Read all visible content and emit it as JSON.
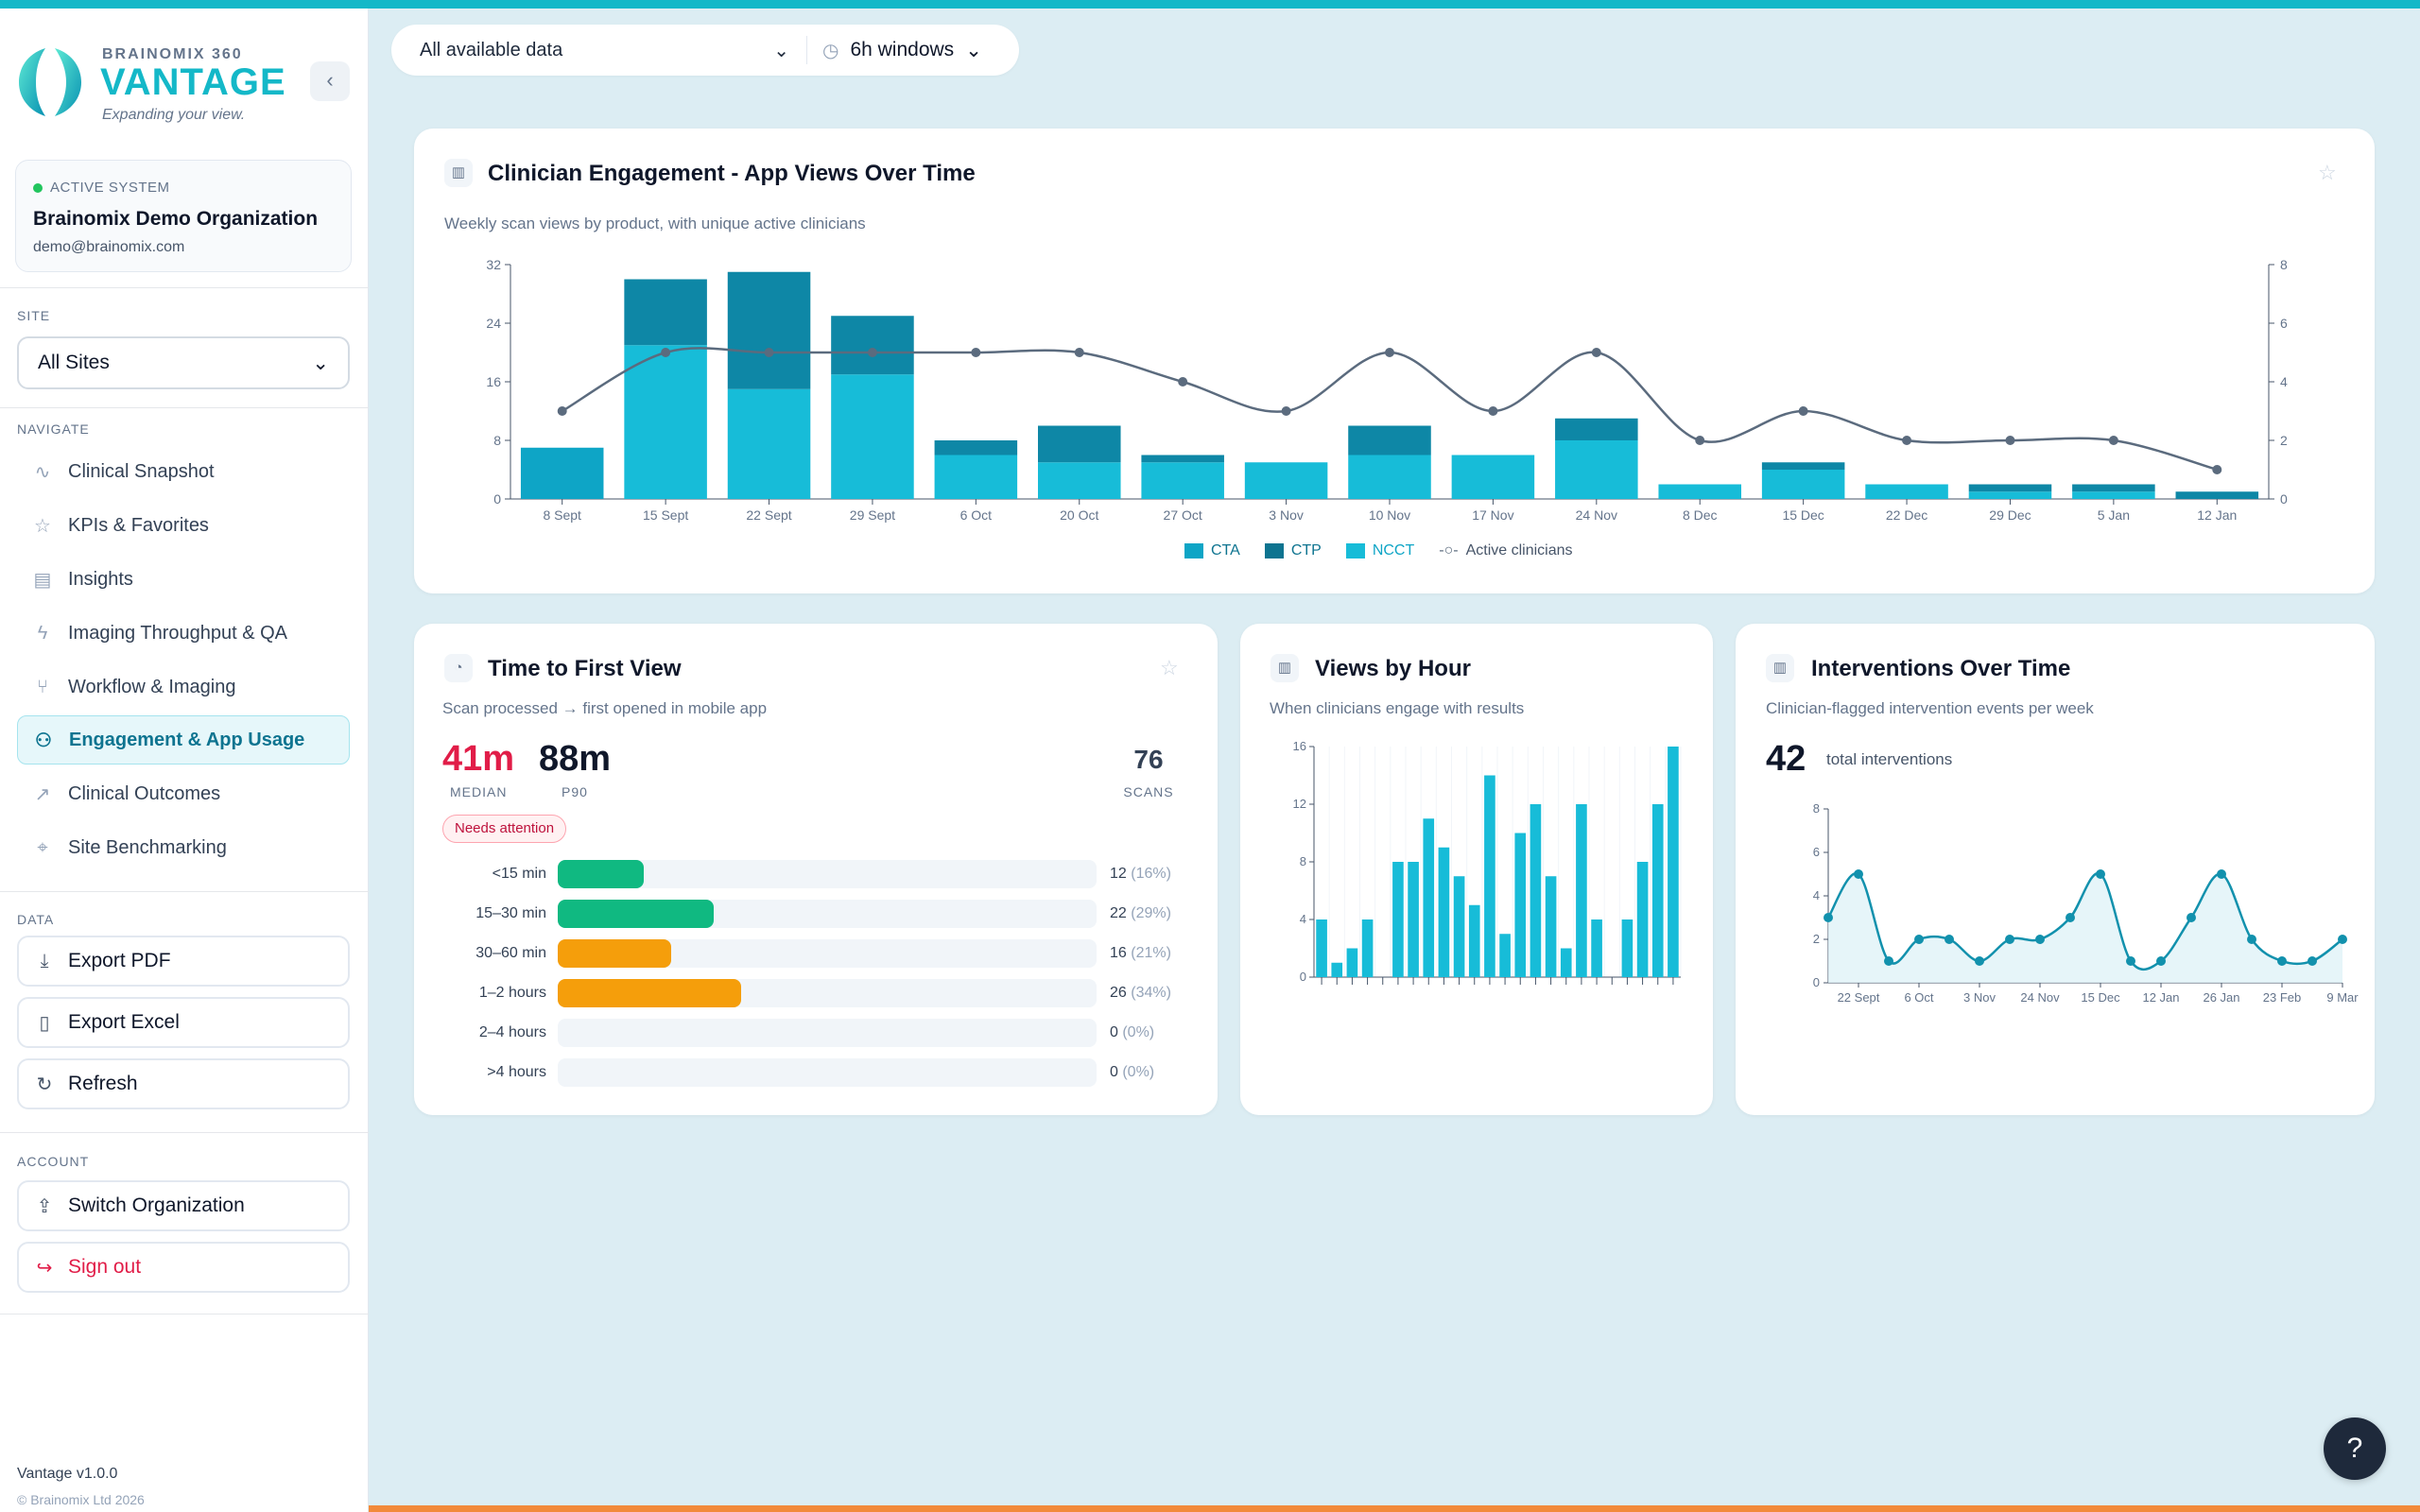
{
  "brand": {
    "small": "BRAINOMIX 360",
    "big": "VANTAGE",
    "tagline": "Expanding your view."
  },
  "system": {
    "status": "ACTIVE SYSTEM",
    "org": "Brainomix Demo Organization",
    "email": "demo@brainomix.com"
  },
  "site": {
    "label": "SITE",
    "value": "All Sites"
  },
  "nav": {
    "label": "NAVIGATE",
    "items": [
      {
        "label": "Clinical Snapshot",
        "icon": "activity-icon"
      },
      {
        "label": "KPIs & Favorites",
        "icon": "star-icon"
      },
      {
        "label": "Insights",
        "icon": "clipboard-icon"
      },
      {
        "label": "Imaging Throughput & QA",
        "icon": "lightning-icon"
      },
      {
        "label": "Workflow & Imaging",
        "icon": "workflow-icon"
      },
      {
        "label": "Engagement & App Usage",
        "icon": "users-icon",
        "active": true
      },
      {
        "label": "Clinical Outcomes",
        "icon": "trend-icon"
      },
      {
        "label": "Site Benchmarking",
        "icon": "pin-icon"
      }
    ]
  },
  "data_section": {
    "label": "DATA",
    "export_pdf": "Export PDF",
    "export_excel": "Export Excel",
    "refresh": "Refresh"
  },
  "account": {
    "label": "ACCOUNT",
    "switch_org": "Switch Organization",
    "sign_out": "Sign out"
  },
  "footer": {
    "version": "Vantage v1.0.0",
    "copyright": "© Brainomix Ltd 2026"
  },
  "filters": {
    "data_scope": "All available data",
    "window": "6h windows"
  },
  "engagement": {
    "title": "Clinician Engagement - App Views Over Time",
    "subtitle": "Weekly scan views by product, with unique active clinicians",
    "legend": {
      "cta": "CTA",
      "ctp": "CTP",
      "ncct": "NCCT",
      "active": "Active clinicians"
    }
  },
  "ttf": {
    "title": "Time to First View",
    "subtitle": "Scan processed → first opened in mobile app",
    "median": "41m",
    "median_label": "MEDIAN",
    "p90": "88m",
    "p90_label": "P90",
    "scans": "76",
    "scans_label": "SCANS",
    "badge": "Needs attention",
    "rows": [
      {
        "label": "<15 min",
        "count": "12",
        "pct": "(16%)",
        "fraction": 0.16,
        "color": "#10b981"
      },
      {
        "label": "15–30 min",
        "count": "22",
        "pct": "(29%)",
        "fraction": 0.29,
        "color": "#10b981"
      },
      {
        "label": "30–60 min",
        "count": "16",
        "pct": "(21%)",
        "fraction": 0.21,
        "color": "#f59e0b"
      },
      {
        "label": "1–2 hours",
        "count": "26",
        "pct": "(34%)",
        "fraction": 0.34,
        "color": "#f59e0b"
      },
      {
        "label": "2–4 hours",
        "count": "0",
        "pct": "(0%)",
        "fraction": 0,
        "color": "#f59e0b"
      },
      {
        "label": ">4 hours",
        "count": "0",
        "pct": "(0%)",
        "fraction": 0,
        "color": "#f59e0b"
      }
    ]
  },
  "hours": {
    "title": "Views by Hour",
    "subtitle": "When clinicians engage with results"
  },
  "interventions": {
    "title": "Interventions Over Time",
    "subtitle": "Clinician-flagged intervention events per week",
    "total": "42",
    "total_label": "total interventions"
  },
  "colors": {
    "cta": "#0ea5c6",
    "ctp": "#0e8aa8",
    "ncct": "#17bcd8",
    "line": "#5b6b7e",
    "accent": "#14b8c8"
  },
  "chart_data": [
    {
      "type": "bar",
      "title": "Clinician Engagement - App Views Over Time",
      "categories": [
        "8 Sept",
        "15 Sept",
        "22 Sept",
        "29 Sept",
        "6 Oct",
        "20 Oct",
        "27 Oct",
        "3 Nov",
        "10 Nov",
        "17 Nov",
        "24 Nov",
        "8 Dec",
        "15 Dec",
        "22 Dec",
        "29 Dec",
        "5 Jan",
        "12 Jan"
      ],
      "series": [
        {
          "name": "CTA",
          "values": [
            7,
            0,
            0,
            0,
            0,
            0,
            0,
            0,
            0,
            0,
            0,
            0,
            0,
            0,
            0,
            0,
            0
          ]
        },
        {
          "name": "CTP",
          "values": [
            0,
            9,
            16,
            8,
            2,
            5,
            1,
            0,
            4,
            0,
            3,
            0,
            1,
            0,
            1,
            1,
            1
          ]
        },
        {
          "name": "NCCT",
          "values": [
            0,
            21,
            15,
            17,
            6,
            5,
            5,
            5,
            6,
            6,
            8,
            2,
            4,
            2,
            1,
            1,
            0
          ]
        },
        {
          "name": "Active clinicians",
          "type": "line",
          "axis": "right",
          "values": [
            3,
            5,
            5,
            5,
            5,
            5,
            4,
            3,
            5,
            3,
            5,
            2,
            3,
            2,
            2,
            2,
            1
          ]
        }
      ],
      "y_left": {
        "ticks": [
          0,
          8,
          16,
          24,
          32
        ],
        "ylim": [
          0,
          32
        ]
      },
      "y_right": {
        "ticks": [
          0,
          2,
          4,
          6,
          8
        ],
        "ylim": [
          0,
          8
        ]
      },
      "legend": "bottom"
    },
    {
      "type": "bar",
      "title": "Views by Hour",
      "x": [
        0,
        1,
        2,
        3,
        4,
        5,
        6,
        7,
        8,
        9,
        10,
        11,
        12,
        13,
        14,
        15,
        16,
        17,
        18,
        19,
        20,
        21,
        22,
        23
      ],
      "values": [
        4,
        1,
        2,
        4,
        0,
        8,
        8,
        11,
        9,
        7,
        5,
        14,
        3,
        10,
        12,
        7,
        2,
        12,
        4,
        0,
        4,
        8,
        12,
        16
      ],
      "y_ticks": [
        0,
        4,
        8,
        12,
        16
      ],
      "ylim": [
        0,
        16
      ]
    },
    {
      "type": "line",
      "title": "Interventions Over Time",
      "categories": [
        "",
        "22 Sept",
        "",
        "6 Oct",
        "",
        "3 Nov",
        "",
        "24 Nov",
        "",
        "15 Dec",
        "",
        "12 Jan",
        "",
        "26 Jan",
        "",
        "23 Feb",
        "",
        "9 Mar"
      ],
      "tick_labels": [
        "22 Sept",
        "6 Oct",
        "3 Nov",
        "24 Nov",
        "15 Dec",
        "12 Jan",
        "26 Jan",
        "23 Feb",
        "9 Mar"
      ],
      "values": [
        3,
        5,
        1,
        2,
        2,
        1,
        2,
        2,
        3,
        5,
        1,
        1,
        3,
        5,
        2,
        1,
        1,
        2
      ],
      "y_ticks": [
        0,
        2,
        4,
        6,
        8
      ],
      "ylim": [
        0,
        8
      ]
    }
  ]
}
